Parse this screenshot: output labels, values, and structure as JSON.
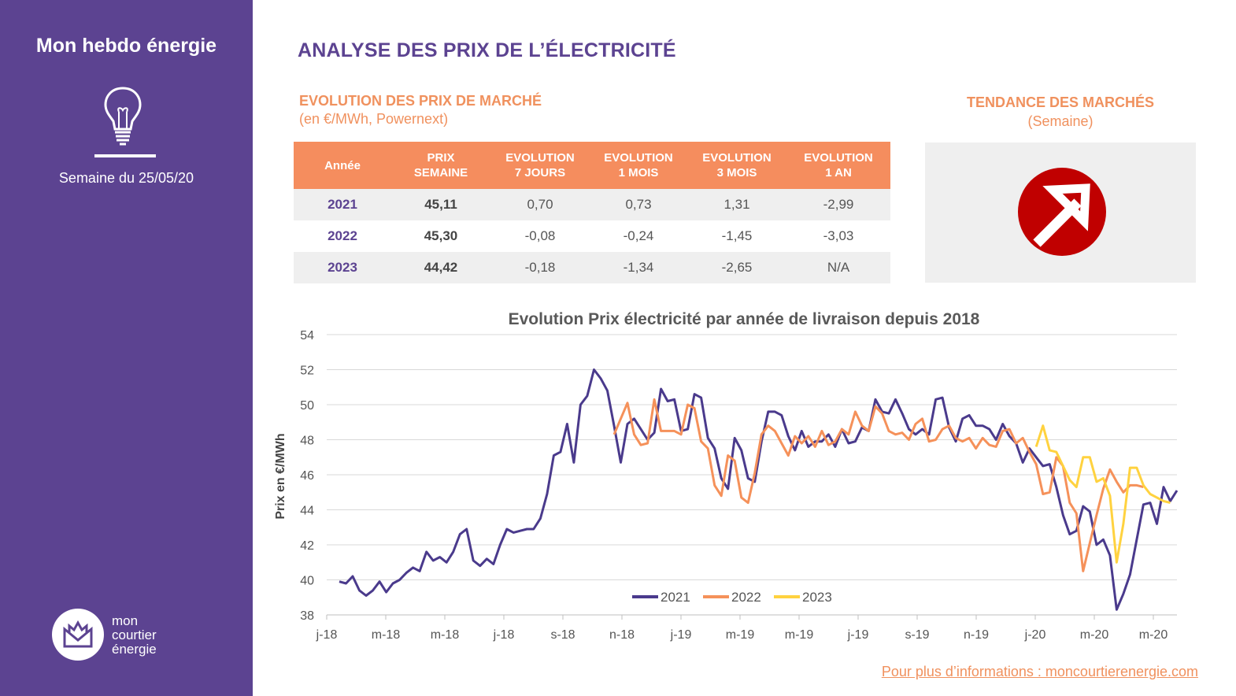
{
  "sidebar": {
    "title": "Mon hebdo énergie",
    "week": "Semaine du 25/05/20",
    "logo_lines": [
      "mon",
      "courtier",
      "énergie"
    ]
  },
  "header": {
    "title": "ANALYSE DES PRIX DE L’ÉLECTRICITÉ",
    "subtitle": "EVOLUTION DES PRIX DE MARCHÉ",
    "unit": "(en €/MWh, Powernext)"
  },
  "table": {
    "headers": [
      [
        "Année"
      ],
      [
        "PRIX",
        "SEMAINE"
      ],
      [
        "EVOLUTION",
        "7 JOURS"
      ],
      [
        "EVOLUTION",
        "1 MOIS"
      ],
      [
        "EVOLUTION",
        "3 MOIS"
      ],
      [
        "EVOLUTION",
        "1 AN"
      ]
    ],
    "rows": [
      [
        "2021",
        "45,11",
        "0,70",
        "0,73",
        "1,31",
        "-2,99"
      ],
      [
        "2022",
        "45,30",
        "-0,08",
        "-0,24",
        "-1,45",
        "-3,03"
      ],
      [
        "2023",
        "44,42",
        "-0,18",
        "-1,34",
        "-2,65",
        "N/A"
      ]
    ]
  },
  "trend": {
    "title": "TENDANCE DES MARCHÉS",
    "subtitle": "(Semaine)",
    "direction": "up",
    "icon": "trend-up-arrow-icon",
    "color": "#c00000"
  },
  "footer": {
    "link": "Pour plus d’informations : moncourtierenergie.com"
  },
  "colors": {
    "purple": "#5c4391",
    "orange": "#f58d5e",
    "series2021": "#4a3a8c",
    "series2022": "#f5915a",
    "series2023": "#ffd23f"
  },
  "chart_data": {
    "type": "line",
    "title": "Evolution Prix électricité par année de livraison depuis 2018",
    "ylabel": "Prix en €/MWh",
    "xlabel": "",
    "ylim": [
      38,
      54
    ],
    "yticks": [
      "38",
      "40",
      "42",
      "44",
      "46",
      "48",
      "50",
      "52",
      "54"
    ],
    "xticks": [
      "j-18",
      "m-18",
      "m-18",
      "j-18",
      "s-18",
      "n-18",
      "j-19",
      "m-19",
      "m-19",
      "j-19",
      "s-19",
      "n-19",
      "j-20",
      "m-20",
      "m-20"
    ],
    "grid": true,
    "legend": "bottom",
    "series": [
      {
        "name": "2021",
        "color": "#4a3a8c",
        "start": 0,
        "values": [
          39.9,
          39.8,
          40.2,
          39.4,
          39.1,
          39.4,
          39.9,
          39.3,
          39.8,
          40.0,
          40.4,
          40.7,
          40.5,
          41.6,
          41.1,
          41.3,
          41.0,
          41.6,
          42.6,
          42.9,
          41.1,
          40.8,
          41.2,
          40.9,
          42.0,
          42.9,
          42.7,
          42.8,
          42.9,
          42.9,
          43.5,
          44.9,
          47.1,
          47.3,
          48.9,
          46.7,
          50.0,
          50.5,
          52.0,
          51.5,
          50.8,
          48.8,
          46.7,
          48.9,
          49.2,
          48.6,
          48.0,
          48.4,
          50.9,
          50.2,
          50.3,
          48.5,
          48.6,
          50.6,
          50.4,
          48.1,
          47.5,
          45.8,
          45.2,
          48.1,
          47.4,
          45.8,
          45.6,
          47.9,
          49.6,
          49.6,
          49.4,
          48.2,
          47.4,
          48.5,
          47.6,
          47.9,
          47.9,
          48.3,
          47.6,
          48.6,
          47.8,
          47.9,
          48.7,
          48.5,
          50.3,
          49.6,
          49.5,
          50.3,
          49.5,
          48.6,
          48.3,
          48.6,
          48.3,
          50.3,
          50.4,
          48.7,
          47.9,
          49.2,
          49.4,
          48.8,
          48.8,
          48.6,
          48.0,
          48.9,
          48.2,
          47.8,
          46.7,
          47.5,
          47.0,
          46.5,
          46.6,
          45.3,
          43.7,
          42.6,
          42.8,
          44.2,
          43.9,
          42.0,
          42.3,
          41.4,
          38.3,
          39.2,
          40.3,
          42.3,
          44.3,
          44.4,
          43.2,
          45.3,
          44.5,
          45.1
        ]
      },
      {
        "name": "2022",
        "color": "#f5915a",
        "start": 41,
        "values": [
          48.3,
          49.2,
          50.1,
          48.3,
          47.7,
          47.8,
          50.3,
          48.5,
          48.5,
          48.5,
          48.3,
          50.0,
          49.8,
          47.9,
          47.5,
          45.4,
          44.8,
          47.1,
          46.8,
          44.7,
          44.4,
          46.1,
          48.3,
          48.8,
          48.5,
          47.8,
          47.1,
          48.2,
          47.8,
          48.2,
          47.6,
          48.5,
          47.7,
          47.9,
          48.6,
          48.3,
          49.6,
          48.8,
          48.5,
          49.9,
          49.5,
          48.5,
          48.3,
          48.4,
          48.0,
          48.9,
          49.2,
          47.9,
          48.0,
          48.6,
          48.8,
          48.1,
          47.9,
          48.1,
          47.5,
          48.1,
          47.7,
          47.6,
          48.5,
          48.6,
          47.8,
          48.1,
          47.3,
          46.6,
          44.9,
          45.0,
          47.0,
          46.5,
          44.4,
          43.8,
          40.5,
          42.1,
          43.7,
          45.2,
          46.3,
          45.6,
          45.0,
          45.4,
          45.4,
          45.3
        ]
      },
      {
        "name": "2023",
        "color": "#ffd23f",
        "start": 104,
        "values": [
          47.6,
          48.8,
          47.4,
          47.3,
          46.5,
          45.7,
          45.3,
          47.0,
          47.0,
          45.6,
          45.8,
          44.8,
          41.0,
          43.2,
          46.4,
          46.4,
          45.4,
          44.9,
          44.7,
          44.5,
          44.4
        ]
      }
    ]
  }
}
